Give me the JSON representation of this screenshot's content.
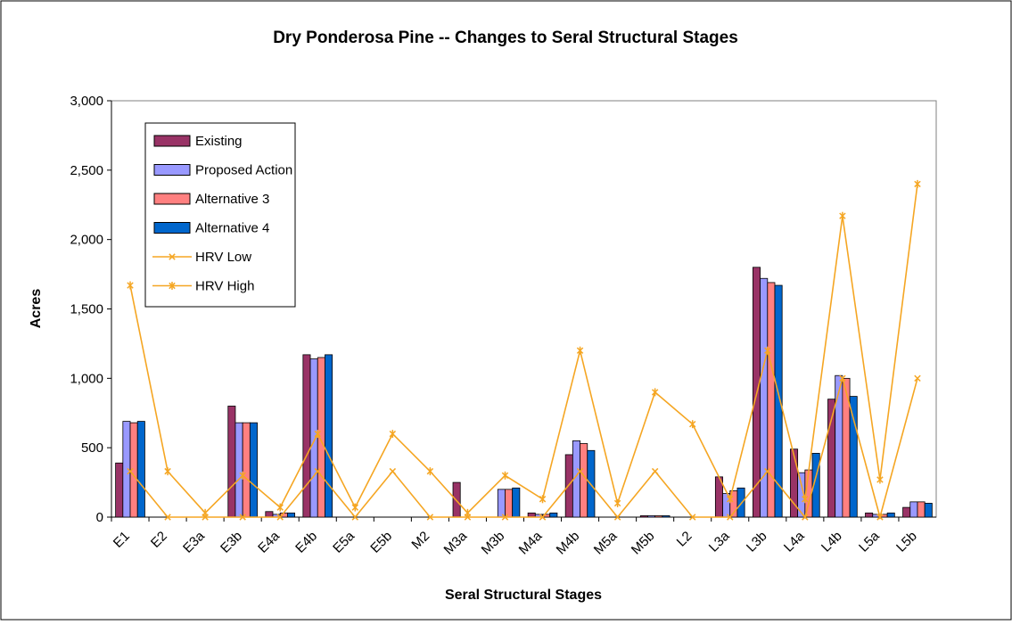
{
  "chart_data": {
    "type": "bar",
    "title": "Dry Ponderosa Pine -- Changes to Seral Structural Stages",
    "x_label": "Seral Structural Stages",
    "y_label": "Acres",
    "categories": [
      "E1",
      "E2",
      "E3a",
      "E3b",
      "E4a",
      "E4b",
      "E5a",
      "E5b",
      "M2",
      "M3a",
      "M3b",
      "M4a",
      "M4b",
      "M5a",
      "M5b",
      "L2",
      "L3a",
      "L3b",
      "L4a",
      "L4b",
      "L5a",
      "L5b"
    ],
    "series": [
      {
        "name": "Existing",
        "type": "bar",
        "color": "#993366",
        "values": [
          390,
          0,
          0,
          800,
          40,
          1170,
          0,
          0,
          0,
          250,
          0,
          30,
          450,
          0,
          10,
          0,
          290,
          1800,
          490,
          850,
          30,
          70
        ]
      },
      {
        "name": "Proposed Action",
        "type": "bar",
        "color": "#9999FF",
        "values": [
          690,
          0,
          0,
          680,
          20,
          1140,
          0,
          0,
          0,
          0,
          200,
          20,
          550,
          0,
          10,
          0,
          170,
          1720,
          320,
          1020,
          20,
          110
        ]
      },
      {
        "name": "Alternative 3",
        "type": "bar",
        "color": "#FF8080",
        "values": [
          680,
          0,
          0,
          680,
          30,
          1150,
          0,
          0,
          0,
          0,
          200,
          20,
          530,
          0,
          10,
          0,
          190,
          1690,
          340,
          1000,
          20,
          110
        ]
      },
      {
        "name": "Alternative 4",
        "type": "bar",
        "color": "#0066CC",
        "values": [
          690,
          0,
          0,
          680,
          30,
          1170,
          0,
          0,
          0,
          0,
          210,
          30,
          480,
          0,
          10,
          0,
          210,
          1670,
          460,
          870,
          30,
          100
        ]
      },
      {
        "name": "HRV Low",
        "type": "line",
        "marker": "x",
        "color": "#F5A623",
        "values": [
          330,
          0,
          0,
          0,
          0,
          330,
          0,
          330,
          0,
          0,
          0,
          0,
          330,
          0,
          330,
          0,
          0,
          330,
          0,
          1000,
          0,
          1000
        ]
      },
      {
        "name": "HRV High",
        "type": "line",
        "marker": "star",
        "color": "#F5A623",
        "values": [
          1670,
          330,
          30,
          300,
          70,
          600,
          70,
          600,
          330,
          30,
          300,
          130,
          1200,
          100,
          900,
          670,
          130,
          1200,
          130,
          2170,
          270,
          2400
        ]
      }
    ],
    "ylim": [
      0,
      3000
    ],
    "yticks": [
      0,
      500,
      {
        "value": 1000,
        "label": "1,000"
      },
      {
        "value": 1500,
        "label": "1,500"
      },
      {
        "value": 2000,
        "label": "2,000"
      },
      {
        "value": 2500,
        "label": "2,500"
      },
      {
        "value": 3000,
        "label": "3,000"
      }
    ],
    "grid": false,
    "legend": "upper left"
  }
}
